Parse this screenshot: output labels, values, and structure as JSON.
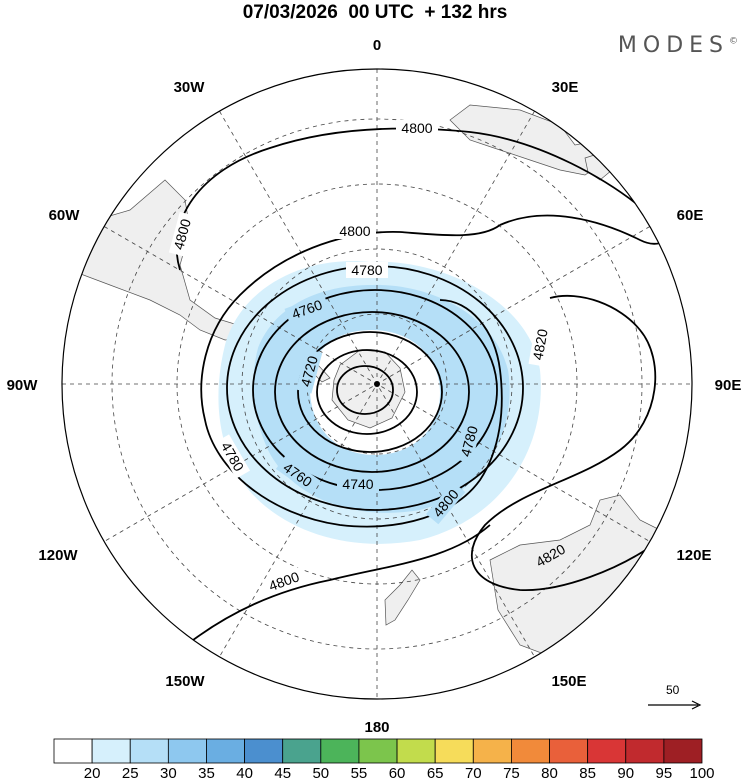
{
  "title": "07/03/2026  00 UTC  + 132 hrs",
  "brand": {
    "name": "MODES",
    "mark": "©"
  },
  "longitude_labels": [
    "0",
    "30E",
    "60E",
    "90E",
    "120E",
    "150E",
    "180",
    "150W",
    "120W",
    "90W",
    "60W",
    "30W"
  ],
  "contours": [
    {
      "value": "4720",
      "label": "4720"
    },
    {
      "value": "4740",
      "label": "4740"
    },
    {
      "value": "4760",
      "label": "4760"
    },
    {
      "value": "4780",
      "label": "4780"
    },
    {
      "value": "4800",
      "label": "4800"
    },
    {
      "value": "4820",
      "label": "4820"
    }
  ],
  "contour_labels": [
    {
      "id": "c4800-top",
      "text": "4800"
    },
    {
      "id": "c4800-left",
      "text": "4800"
    },
    {
      "id": "c4800-inner",
      "text": "4800"
    },
    {
      "id": "c4780-top",
      "text": "4780"
    },
    {
      "id": "c4760-top",
      "text": "4760"
    },
    {
      "id": "c4720",
      "text": "4720"
    },
    {
      "id": "c4820-right",
      "text": "4820"
    },
    {
      "id": "c4780-right",
      "text": "4780"
    },
    {
      "id": "c4780-left",
      "text": "4780"
    },
    {
      "id": "c4760-bottom",
      "text": "4760"
    },
    {
      "id": "c4740",
      "text": "4740"
    },
    {
      "id": "c4800-bottom",
      "text": "4800"
    },
    {
      "id": "c4800-bl",
      "text": "4800"
    },
    {
      "id": "c4820-br",
      "text": "4820"
    }
  ],
  "reference_vector": {
    "label": "50"
  },
  "colorbar": {
    "labels": [
      "20",
      "25",
      "30",
      "35",
      "40",
      "45",
      "50",
      "55",
      "60",
      "65",
      "70",
      "75",
      "80",
      "85",
      "90",
      "95",
      "100"
    ],
    "colors": [
      "#ffffff",
      "#d6f0fc",
      "#b5dff7",
      "#8ec8ef",
      "#6aaee2",
      "#4b8fcf",
      "#4aa38e",
      "#4cb45a",
      "#7cc54c",
      "#c2dc4c",
      "#f6dc5a",
      "#f5b24a",
      "#f18a3a",
      "#e9603a",
      "#d93636",
      "#c12a2e",
      "#9e1f24"
    ]
  },
  "jet_colors": {
    "light": "#d6f0fc",
    "mid": "#b5dff7",
    "strong": "#8ec8ef"
  },
  "land_color": "#efefef"
}
